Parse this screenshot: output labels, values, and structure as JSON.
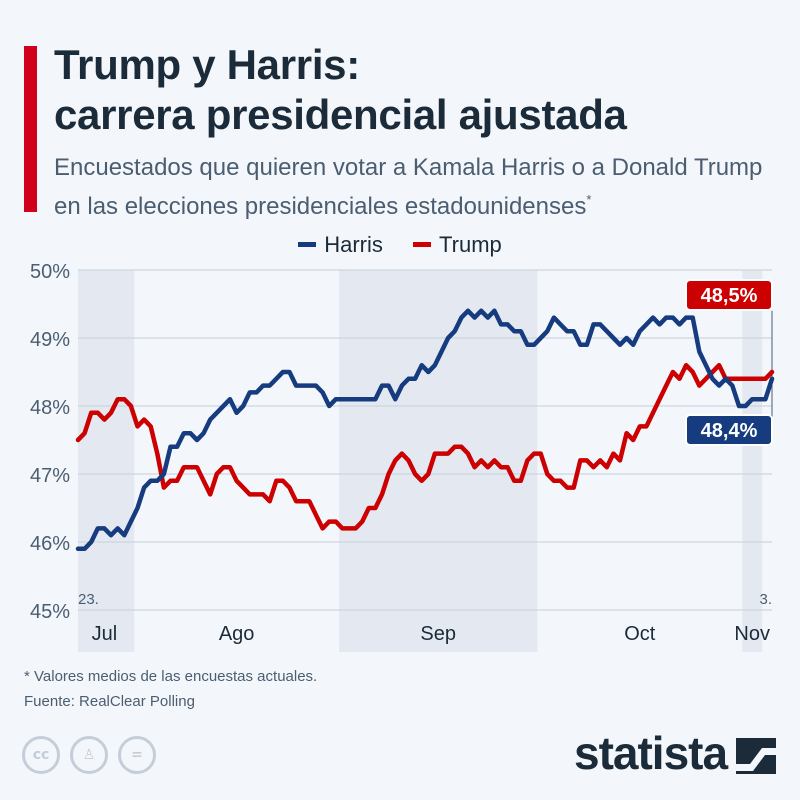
{
  "header": {
    "title_line1": "Trump y Harris:",
    "title_line2": "carrera presidencial ajustada",
    "subtitle": "Encuestados que quieren votar a Kamala Harris o a Donald Trump en las elecciones presidenciales estadounidenses",
    "subtitle_mark": "*"
  },
  "footer": {
    "footnote": "* Valores medios de las encuestas actuales.",
    "source": "Fuente: RealClear Polling",
    "brand": "statista",
    "license_icons": [
      "cc-icon",
      "attribution-icon",
      "no-derivatives-icon"
    ]
  },
  "colors": {
    "harris": "#163b7f",
    "trump": "#cc0000",
    "accent": "#d0021b",
    "shade": "#e4e9f1",
    "grid": "#c5ced8"
  },
  "chart_data": {
    "type": "line",
    "title": "",
    "xlabel": "",
    "ylabel": "",
    "ylim": [
      45,
      50
    ],
    "yticks": [
      "45%",
      "46%",
      "47%",
      "48%",
      "49%",
      "50%"
    ],
    "legend_position": "top-center",
    "start_label": "23.",
    "end_label": "3.",
    "months": [
      {
        "label": "Jul",
        "start": 0,
        "end": 8,
        "shaded": true
      },
      {
        "label": "Ago",
        "start": 9,
        "end": 39,
        "shaded": false
      },
      {
        "label": "Sep",
        "start": 40,
        "end": 69,
        "shaded": true
      },
      {
        "label": "Oct",
        "start": 70,
        "end": 100,
        "shaded": false
      },
      {
        "label": "Nov",
        "start": 101,
        "end": 103,
        "shaded": true
      }
    ],
    "series": [
      {
        "name": "Harris",
        "end_label": "48,4%",
        "values": [
          45.9,
          45.9,
          46.0,
          46.2,
          46.2,
          46.1,
          46.2,
          46.1,
          46.3,
          46.5,
          46.8,
          46.9,
          46.9,
          47.0,
          47.4,
          47.4,
          47.6,
          47.6,
          47.5,
          47.6,
          47.8,
          47.9,
          48.0,
          48.1,
          47.9,
          48.0,
          48.2,
          48.2,
          48.3,
          48.3,
          48.4,
          48.5,
          48.5,
          48.3,
          48.3,
          48.3,
          48.3,
          48.2,
          48.0,
          48.1,
          48.1,
          48.1,
          48.1,
          48.1,
          48.1,
          48.1,
          48.3,
          48.3,
          48.1,
          48.3,
          48.4,
          48.4,
          48.6,
          48.5,
          48.6,
          48.8,
          49.0,
          49.1,
          49.3,
          49.4,
          49.3,
          49.4,
          49.3,
          49.4,
          49.2,
          49.2,
          49.1,
          49.1,
          48.9,
          48.9,
          49.0,
          49.1,
          49.3,
          49.2,
          49.1,
          49.1,
          48.9,
          48.9,
          49.2,
          49.2,
          49.1,
          49.0,
          48.9,
          49.0,
          48.9,
          49.1,
          49.2,
          49.3,
          49.2,
          49.3,
          49.3,
          49.2,
          49.3,
          49.3,
          48.8,
          48.6,
          48.4,
          48.3,
          48.4,
          48.3,
          48.0,
          48.0,
          48.1,
          48.1,
          48.1,
          48.4
        ]
      },
      {
        "name": "Trump",
        "end_label": "48,5%",
        "values": [
          47.5,
          47.6,
          47.9,
          47.9,
          47.8,
          47.9,
          48.1,
          48.1,
          48.0,
          47.7,
          47.8,
          47.7,
          47.3,
          46.8,
          46.9,
          46.9,
          47.1,
          47.1,
          47.1,
          46.9,
          46.7,
          47.0,
          47.1,
          47.1,
          46.9,
          46.8,
          46.7,
          46.7,
          46.7,
          46.6,
          46.9,
          46.9,
          46.8,
          46.6,
          46.6,
          46.6,
          46.4,
          46.2,
          46.3,
          46.3,
          46.2,
          46.2,
          46.2,
          46.3,
          46.5,
          46.5,
          46.7,
          47.0,
          47.2,
          47.3,
          47.2,
          47.0,
          46.9,
          47.0,
          47.3,
          47.3,
          47.3,
          47.4,
          47.4,
          47.3,
          47.1,
          47.2,
          47.1,
          47.2,
          47.1,
          47.1,
          46.9,
          46.9,
          47.2,
          47.3,
          47.3,
          47.0,
          46.9,
          46.9,
          46.8,
          46.8,
          47.2,
          47.2,
          47.1,
          47.2,
          47.1,
          47.3,
          47.2,
          47.6,
          47.5,
          47.7,
          47.7,
          47.9,
          48.1,
          48.3,
          48.5,
          48.4,
          48.6,
          48.5,
          48.3,
          48.4,
          48.5,
          48.6,
          48.4,
          48.4,
          48.4,
          48.4,
          48.4,
          48.4,
          48.4,
          48.5
        ]
      }
    ]
  }
}
